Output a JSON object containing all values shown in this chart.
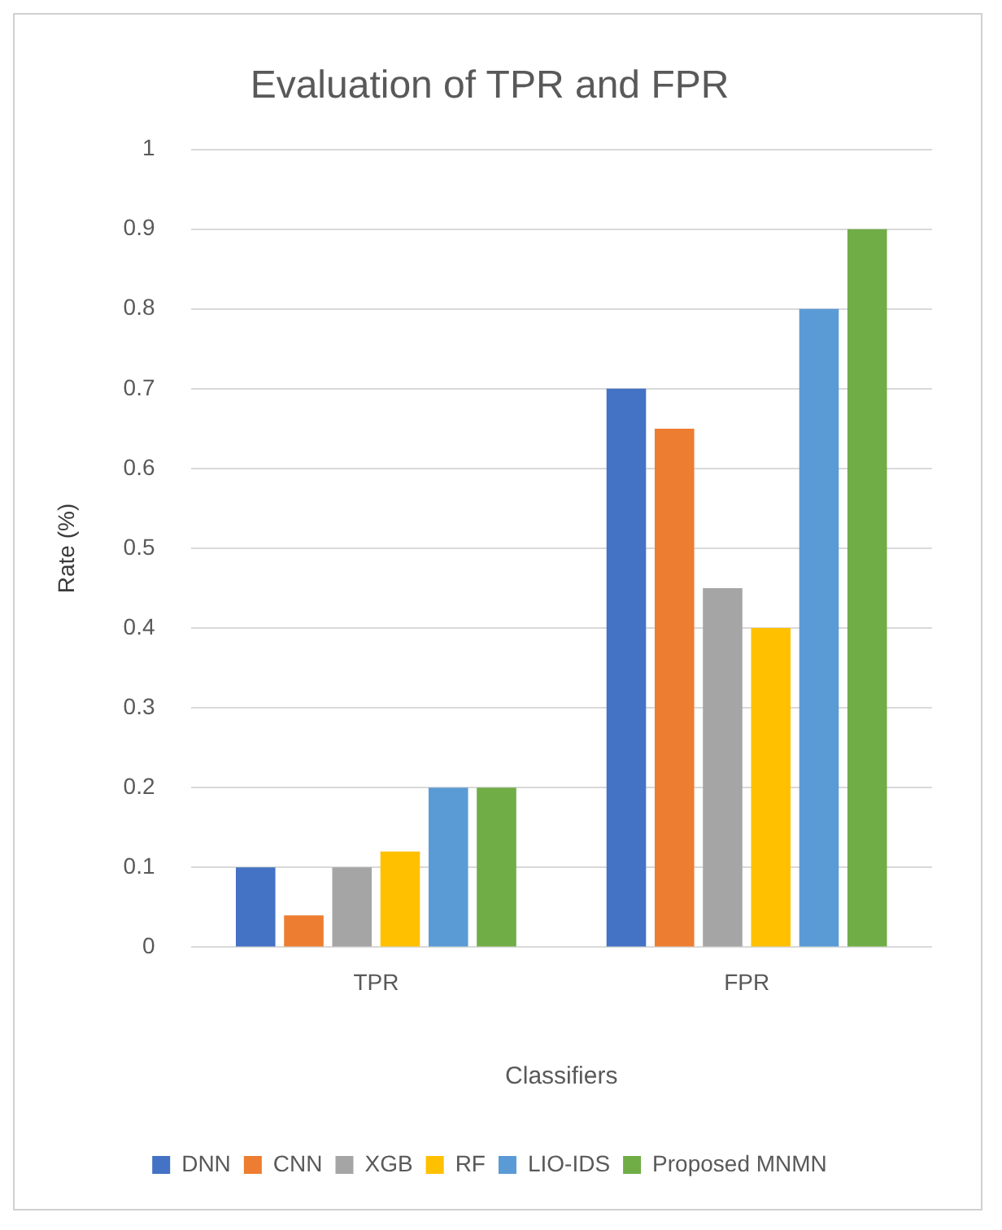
{
  "chart_data": {
    "type": "bar",
    "title": "Evaluation of TPR and FPR",
    "xlabel": "Classifiers",
    "ylabel": "Rate (%)",
    "categories": [
      "TPR",
      "FPR"
    ],
    "series": [
      {
        "name": "DNN",
        "color": "#4472c4",
        "values": [
          0.1,
          0.7
        ]
      },
      {
        "name": "CNN",
        "color": "#ed7d31",
        "values": [
          0.04,
          0.65
        ]
      },
      {
        "name": "XGB",
        "color": "#a5a5a5",
        "values": [
          0.1,
          0.45
        ]
      },
      {
        "name": "RF",
        "color": "#ffc000",
        "values": [
          0.12,
          0.4
        ]
      },
      {
        "name": "LIO-IDS",
        "color": "#5b9bd5",
        "values": [
          0.2,
          0.8
        ]
      },
      {
        "name": "Proposed MNMN",
        "color": "#70ad47",
        "values": [
          0.2,
          0.9
        ]
      }
    ],
    "ylim": [
      0,
      1
    ],
    "yticks": [
      0,
      0.1,
      0.2,
      0.3,
      0.4,
      0.5,
      0.6,
      0.7,
      0.8,
      0.9,
      1
    ],
    "grid": "y",
    "legend": "bottom"
  }
}
